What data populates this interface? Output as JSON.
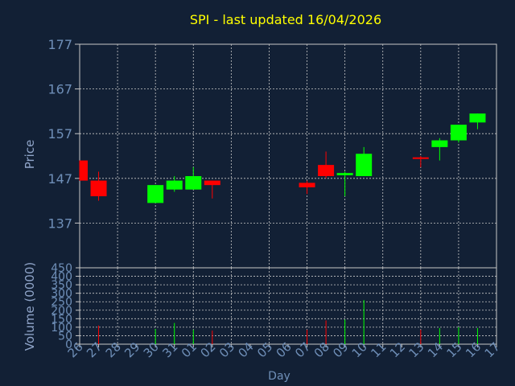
{
  "chart_data": {
    "type": "candlestick",
    "title": "SPI - last updated 16/04/2026",
    "xlabel": "Day",
    "ylabel_price": "Price",
    "ylabel_volume": "Volume (0000)",
    "price_ylim": [
      127,
      177
    ],
    "price_ticks": [
      177,
      167,
      157,
      147,
      137
    ],
    "volume_ylim": [
      0,
      450
    ],
    "volume_ticks": [
      450,
      400,
      350,
      300,
      250,
      200,
      150,
      100,
      50,
      0
    ],
    "grid": true,
    "x_labels": [
      "26",
      "27",
      "28",
      "29",
      "30",
      "31",
      "01",
      "02",
      "03",
      "04",
      "05",
      "06",
      "07",
      "08",
      "09",
      "10",
      "11",
      "12",
      "13",
      "14",
      "15",
      "16",
      "17"
    ],
    "candles": [
      {
        "day": "26",
        "open": 151,
        "close": 146.5,
        "high": 151,
        "low": 146.5,
        "volume": 0
      },
      {
        "day": "27",
        "open": 146.5,
        "close": 143,
        "high": 148.5,
        "low": 142,
        "volume": 110
      },
      {
        "day": "30",
        "open": 141.5,
        "close": 145.5,
        "high": 145.5,
        "low": 141.5,
        "volume": 90
      },
      {
        "day": "31",
        "open": 144.5,
        "close": 146.5,
        "high": 147.5,
        "low": 144,
        "volume": 125
      },
      {
        "day": "01",
        "open": 144.5,
        "close": 147.5,
        "high": 149.5,
        "low": 144.5,
        "volume": 85
      },
      {
        "day": "02",
        "open": 146.5,
        "close": 145.5,
        "high": 146.5,
        "low": 142.5,
        "volume": 80
      },
      {
        "day": "07",
        "open": 146,
        "close": 145,
        "high": 146.5,
        "low": 143.5,
        "volume": 85
      },
      {
        "day": "08",
        "open": 150,
        "close": 147.5,
        "high": 153,
        "low": 147,
        "volume": 140
      },
      {
        "day": "09",
        "open": 147.7,
        "close": 148.2,
        "high": 148.5,
        "low": 143,
        "volume": 145
      },
      {
        "day": "10",
        "open": 147.5,
        "close": 152.5,
        "high": 154,
        "low": 147.5,
        "volume": 260
      },
      {
        "day": "13",
        "open": 151.7,
        "close": 151.4,
        "high": 152,
        "low": 149.5,
        "volume": 85
      },
      {
        "day": "14",
        "open": 154,
        "close": 155.5,
        "high": 156,
        "low": 151,
        "volume": 95
      },
      {
        "day": "15",
        "open": 155.5,
        "close": 159,
        "high": 159,
        "low": 155,
        "volume": 100
      },
      {
        "day": "16",
        "open": 159.5,
        "close": 161.5,
        "high": 161.5,
        "low": 158,
        "volume": 95
      }
    ],
    "colors": {
      "background": "#122035",
      "up": "#00ff00",
      "down": "#ff0000",
      "grid": "#c8c8c8",
      "axis_text": "#6f8fb8",
      "title": "#ffff00",
      "label": "#8fa4c8"
    }
  }
}
